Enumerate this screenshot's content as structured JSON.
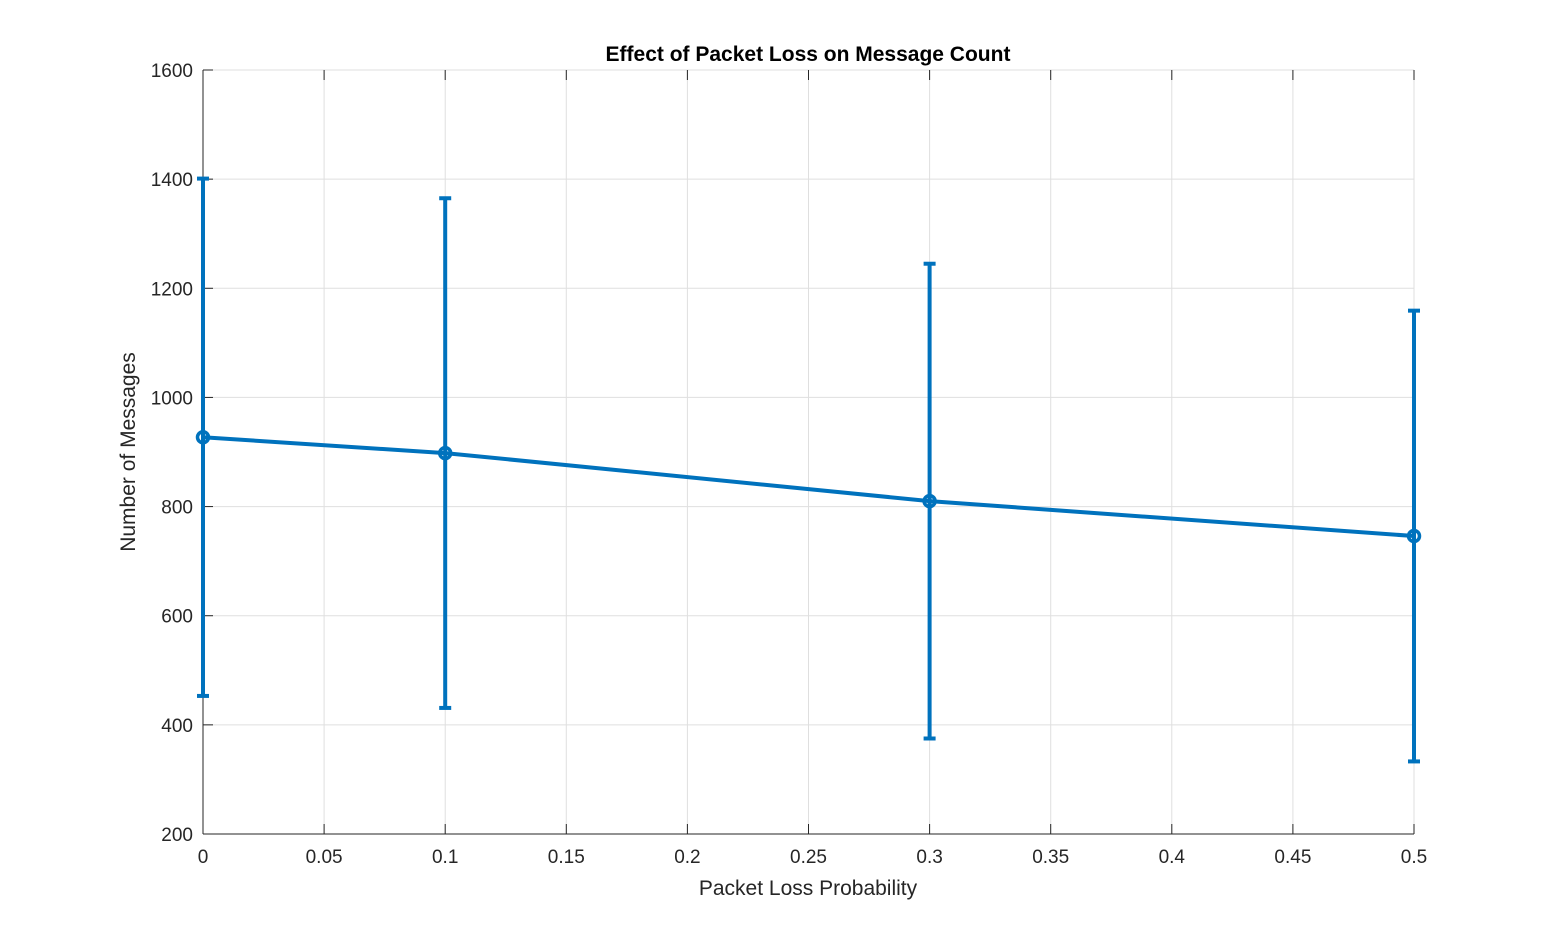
{
  "chart_data": {
    "type": "line",
    "title": "Effect of Packet Loss on Message Count",
    "xlabel": "Packet Loss Probability",
    "ylabel": "Number of Messages",
    "xlim": [
      0,
      0.5
    ],
    "ylim": [
      200,
      1600
    ],
    "x_ticks": [
      0,
      0.05,
      0.1,
      0.15,
      0.2,
      0.25,
      0.3,
      0.35,
      0.4,
      0.45,
      0.5
    ],
    "x_tick_labels": [
      "0",
      "0.05",
      "0.1",
      "0.15",
      "0.2",
      "0.25",
      "0.3",
      "0.35",
      "0.4",
      "0.45",
      "0.5"
    ],
    "y_ticks": [
      200,
      400,
      600,
      800,
      1000,
      1200,
      1400,
      1600
    ],
    "y_tick_labels": [
      "200",
      "400",
      "600",
      "800",
      "1000",
      "1200",
      "1400",
      "1600"
    ],
    "grid": true,
    "legend": false,
    "series": [
      {
        "x": [
          0,
          0.1,
          0.3,
          0.5
        ],
        "values": [
          927,
          898,
          810,
          746
        ],
        "error_lower": [
          453,
          431,
          375,
          333
        ],
        "error_upper": [
          1401,
          1365,
          1245,
          1159
        ],
        "marker": "circle",
        "color": "#0072BD"
      }
    ]
  }
}
